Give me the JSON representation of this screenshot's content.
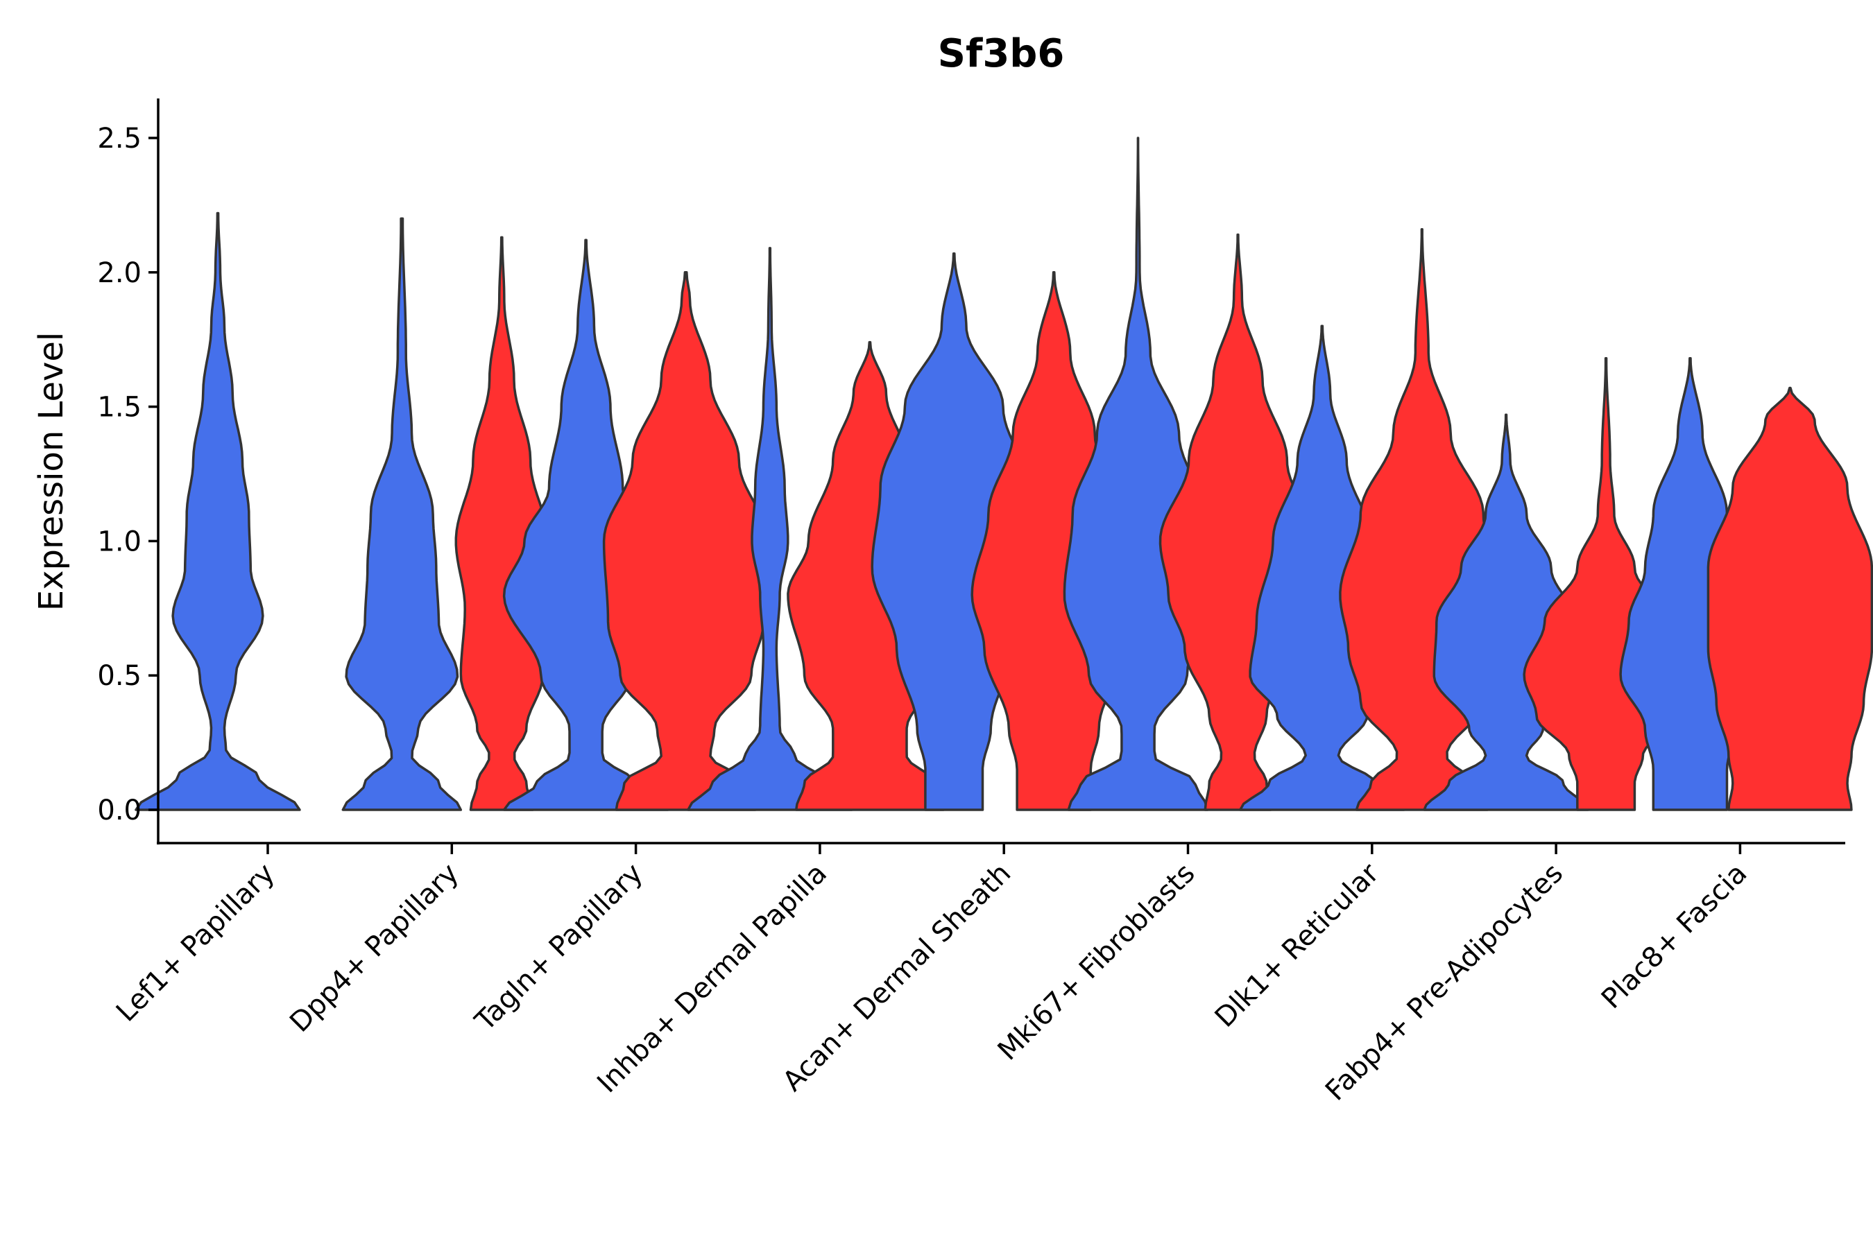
{
  "chart_data": {
    "type": "violin",
    "title": "Sf3b6",
    "xlabel": "",
    "ylabel": "Expression Level",
    "ylim": [
      -0.12,
      2.65
    ],
    "yticks": [
      0.0,
      0.5,
      1.0,
      1.5,
      2.0,
      2.5
    ],
    "ytick_labels": [
      "0.0",
      "0.5",
      "1.0",
      "1.5",
      "2.0",
      "2.5"
    ],
    "grid": false,
    "legend": "none",
    "colors": {
      "group1": "#4570eb",
      "group2": "#ff3030",
      "outline": "#333333"
    },
    "categories": [
      "Lef1+ Papillary",
      "Dpp4+ Papillary",
      "Tagln+ Papillary",
      "Inhba+ Dermal Papilla",
      "Acan+ Dermal Sheath",
      "Mki67+ Fibroblasts",
      "Dlk1+ Reticular",
      "Fabp4+ Pre-Adipocytes",
      "Plac8+ Fascia"
    ],
    "violins": [
      {
        "category": 0,
        "split": "group1",
        "max": 2.22,
        "profile": [
          [
            0,
            1
          ],
          [
            0.12,
            0.5
          ],
          [
            0.22,
            0.1
          ],
          [
            0.3,
            0.08
          ],
          [
            0.5,
            0.22
          ],
          [
            0.72,
            0.55
          ],
          [
            0.9,
            0.4
          ],
          [
            1.1,
            0.38
          ],
          [
            1.3,
            0.3
          ],
          [
            1.55,
            0.18
          ],
          [
            1.8,
            0.08
          ],
          [
            2.0,
            0.03
          ],
          [
            2.22,
            0.005
          ]
        ]
      },
      {
        "category": 1,
        "split": "group1",
        "max": 2.2,
        "profile": [
          [
            0,
            0.72
          ],
          [
            0.1,
            0.45
          ],
          [
            0.2,
            0.12
          ],
          [
            0.3,
            0.2
          ],
          [
            0.5,
            0.68
          ],
          [
            0.7,
            0.45
          ],
          [
            0.9,
            0.42
          ],
          [
            1.1,
            0.38
          ],
          [
            1.4,
            0.12
          ],
          [
            1.7,
            0.05
          ],
          [
            2.2,
            0.01
          ]
        ]
      },
      {
        "category": 1,
        "split": "group2",
        "max": 2.13,
        "profile": [
          [
            0,
            0.38
          ],
          [
            0.1,
            0.3
          ],
          [
            0.2,
            0.15
          ],
          [
            0.3,
            0.3
          ],
          [
            0.5,
            0.5
          ],
          [
            0.75,
            0.45
          ],
          [
            1.0,
            0.56
          ],
          [
            1.3,
            0.35
          ],
          [
            1.6,
            0.15
          ],
          [
            1.9,
            0.03
          ],
          [
            2.13,
            0.005
          ]
        ]
      },
      {
        "category": 2,
        "split": "group1",
        "max": 2.12,
        "profile": [
          [
            0,
            1
          ],
          [
            0.1,
            0.6
          ],
          [
            0.2,
            0.2
          ],
          [
            0.3,
            0.2
          ],
          [
            0.5,
            0.55
          ],
          [
            0.8,
            1
          ],
          [
            1.0,
            0.75
          ],
          [
            1.2,
            0.45
          ],
          [
            1.5,
            0.3
          ],
          [
            1.8,
            0.1
          ],
          [
            2.12,
            0.005
          ]
        ]
      },
      {
        "category": 2,
        "split": "group2",
        "max": 2.0,
        "profile": [
          [
            0,
            0.85
          ],
          [
            0.1,
            0.75
          ],
          [
            0.2,
            0.3
          ],
          [
            0.3,
            0.35
          ],
          [
            0.5,
            0.8
          ],
          [
            0.7,
            0.95
          ],
          [
            1.0,
            1
          ],
          [
            1.3,
            0.65
          ],
          [
            1.6,
            0.3
          ],
          [
            1.9,
            0.05
          ],
          [
            2.0,
            0.01
          ]
        ]
      },
      {
        "category": 3,
        "split": "group1",
        "max": 2.09,
        "profile": [
          [
            0,
            1
          ],
          [
            0.1,
            0.7
          ],
          [
            0.2,
            0.3
          ],
          [
            0.3,
            0.12
          ],
          [
            0.6,
            0.08
          ],
          [
            0.8,
            0.12
          ],
          [
            1.0,
            0.22
          ],
          [
            1.2,
            0.18
          ],
          [
            1.5,
            0.08
          ],
          [
            1.8,
            0.02
          ],
          [
            2.09,
            0.003
          ]
        ]
      },
      {
        "category": 3,
        "split": "group2",
        "max": 1.74,
        "profile": [
          [
            0,
            0.9
          ],
          [
            0.1,
            0.8
          ],
          [
            0.2,
            0.45
          ],
          [
            0.3,
            0.45
          ],
          [
            0.5,
            0.8
          ],
          [
            0.8,
            1
          ],
          [
            1.0,
            0.75
          ],
          [
            1.3,
            0.45
          ],
          [
            1.55,
            0.2
          ],
          [
            1.74,
            0.005
          ]
        ]
      },
      {
        "category": 4,
        "split": "group1",
        "max": 2.07,
        "profile": [
          [
            0,
            0.35
          ],
          [
            0.15,
            0.35
          ],
          [
            0.3,
            0.45
          ],
          [
            0.6,
            0.7
          ],
          [
            0.9,
            1
          ],
          [
            1.2,
            0.9
          ],
          [
            1.5,
            0.6
          ],
          [
            1.8,
            0.15
          ],
          [
            2.07,
            0.005
          ]
        ]
      },
      {
        "category": 4,
        "split": "group2",
        "max": 2.0,
        "profile": [
          [
            0,
            0.45
          ],
          [
            0.15,
            0.45
          ],
          [
            0.3,
            0.55
          ],
          [
            0.6,
            0.85
          ],
          [
            0.8,
            1
          ],
          [
            1.1,
            0.8
          ],
          [
            1.4,
            0.5
          ],
          [
            1.7,
            0.2
          ],
          [
            2.0,
            0.005
          ]
        ]
      },
      {
        "category": 5,
        "split": "group1",
        "max": 2.5,
        "profile": [
          [
            0,
            0.85
          ],
          [
            0.1,
            0.7
          ],
          [
            0.2,
            0.2
          ],
          [
            0.3,
            0.2
          ],
          [
            0.5,
            0.6
          ],
          [
            0.8,
            0.9
          ],
          [
            1.1,
            0.8
          ],
          [
            1.4,
            0.5
          ],
          [
            1.7,
            0.15
          ],
          [
            2.0,
            0.02
          ],
          [
            2.5,
            0.001
          ]
        ]
      },
      {
        "category": 5,
        "split": "group2",
        "max": 2.14,
        "profile": [
          [
            0,
            0.4
          ],
          [
            0.1,
            0.35
          ],
          [
            0.2,
            0.2
          ],
          [
            0.35,
            0.35
          ],
          [
            0.6,
            0.65
          ],
          [
            0.8,
            0.85
          ],
          [
            1.0,
            0.95
          ],
          [
            1.3,
            0.6
          ],
          [
            1.6,
            0.3
          ],
          [
            1.9,
            0.05
          ],
          [
            2.14,
            0.003
          ]
        ]
      },
      {
        "category": 6,
        "split": "group1",
        "max": 1.8,
        "profile": [
          [
            0,
            1
          ],
          [
            0.1,
            0.65
          ],
          [
            0.2,
            0.2
          ],
          [
            0.35,
            0.55
          ],
          [
            0.5,
            0.88
          ],
          [
            0.7,
            0.8
          ],
          [
            1.0,
            0.6
          ],
          [
            1.3,
            0.3
          ],
          [
            1.55,
            0.1
          ],
          [
            1.8,
            0.005
          ]
        ]
      },
      {
        "category": 6,
        "split": "group2",
        "max": 2.16,
        "profile": [
          [
            0,
            0.8
          ],
          [
            0.1,
            0.62
          ],
          [
            0.2,
            0.3
          ],
          [
            0.4,
            0.75
          ],
          [
            0.6,
            0.9
          ],
          [
            0.8,
            1
          ],
          [
            1.1,
            0.75
          ],
          [
            1.4,
            0.35
          ],
          [
            1.7,
            0.08
          ],
          [
            2.16,
            0.003
          ]
        ]
      },
      {
        "category": 7,
        "split": "group1",
        "max": 1.47,
        "profile": [
          [
            0,
            1
          ],
          [
            0.1,
            0.7
          ],
          [
            0.2,
            0.25
          ],
          [
            0.3,
            0.45
          ],
          [
            0.5,
            0.88
          ],
          [
            0.7,
            0.85
          ],
          [
            0.9,
            0.55
          ],
          [
            1.1,
            0.25
          ],
          [
            1.3,
            0.05
          ],
          [
            1.47,
            0.003
          ]
        ]
      },
      {
        "category": 7,
        "split": "group2",
        "max": 1.68,
        "profile": [
          [
            0,
            0.35
          ],
          [
            0.1,
            0.35
          ],
          [
            0.2,
            0.45
          ],
          [
            0.35,
            0.85
          ],
          [
            0.5,
            1
          ],
          [
            0.7,
            0.75
          ],
          [
            0.9,
            0.35
          ],
          [
            1.1,
            0.1
          ],
          [
            1.3,
            0.05
          ],
          [
            1.68,
            0.004
          ]
        ]
      },
      {
        "category": 8,
        "split": "group1",
        "max": 1.68,
        "profile": [
          [
            0,
            0.45
          ],
          [
            0.15,
            0.45
          ],
          [
            0.3,
            0.55
          ],
          [
            0.5,
            0.85
          ],
          [
            0.7,
            0.75
          ],
          [
            0.9,
            0.55
          ],
          [
            1.1,
            0.45
          ],
          [
            1.4,
            0.15
          ],
          [
            1.68,
            0.005
          ]
        ]
      },
      {
        "category": 8,
        "split": "group2",
        "max": 1.57,
        "profile": [
          [
            0,
            0.75
          ],
          [
            0.1,
            0.7
          ],
          [
            0.2,
            0.75
          ],
          [
            0.4,
            0.9
          ],
          [
            0.6,
            1
          ],
          [
            0.9,
            1
          ],
          [
            1.2,
            0.7
          ],
          [
            1.45,
            0.3
          ],
          [
            1.57,
            0.005
          ]
        ]
      }
    ]
  }
}
